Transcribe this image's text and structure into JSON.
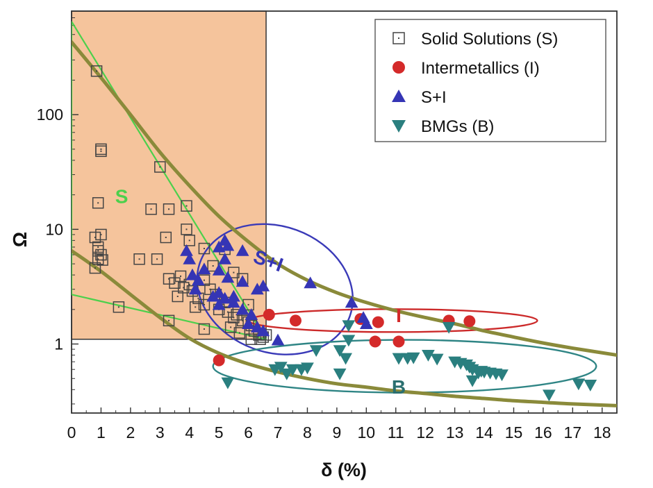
{
  "chart_data": {
    "type": "scatter",
    "xlabel": "δ (%)",
    "ylabel": "Ω",
    "xlim": [
      0,
      18.5
    ],
    "ylim": [
      0.25,
      800
    ],
    "yscale": "log",
    "xticks": [
      "0",
      "1",
      "2",
      "3",
      "4",
      "5",
      "6",
      "7",
      "8",
      "9",
      "10",
      "11",
      "12",
      "13",
      "14",
      "15",
      "16",
      "17",
      "18"
    ],
    "yticks": [
      {
        "value": 1,
        "label": "1"
      },
      {
        "value": 10,
        "label": "10"
      },
      {
        "value": 100,
        "label": "100"
      }
    ],
    "legend_position": "top-right",
    "colors": {
      "solid": "#444444",
      "inter": "#d42a2a",
      "si": "#3535b5",
      "bmg": "#2a7f7f",
      "region_fill": "#f5c49c",
      "curve": "#8a8a3a",
      "green": "#4cd04c",
      "ellipse_si": "#3a3ab8",
      "ellipse_i": "#cc2a2a",
      "ellipse_b": "#2f8585"
    },
    "region": {
      "x": [
        0,
        6.6
      ],
      "y": [
        1.1,
        800
      ]
    },
    "region_labels": [
      {
        "text": "S",
        "x": 1.7,
        "y": 17,
        "color": "#4cd04c"
      },
      {
        "text": "S+I",
        "x": 6.6,
        "y": 4.7,
        "color": "#3535b5"
      },
      {
        "text": "I",
        "x": 11.1,
        "y": 1.55,
        "color": "#d42a2a"
      },
      {
        "text": "B",
        "x": 11.1,
        "y": 0.37,
        "color": "#2a6f6f"
      }
    ],
    "series": [
      {
        "name": "Solid Solutions (S)",
        "marker": "square",
        "points": [
          [
            0.85,
            240
          ],
          [
            1.0,
            50
          ],
          [
            1.0,
            48
          ],
          [
            0.9,
            17
          ],
          [
            0.8,
            8.5
          ],
          [
            1.0,
            9
          ],
          [
            0.9,
            7
          ],
          [
            1.0,
            6
          ],
          [
            0.9,
            5.5
          ],
          [
            0.8,
            4.6
          ],
          [
            0.9,
            6.5
          ],
          [
            1.05,
            5.4
          ],
          [
            1.6,
            2.1
          ],
          [
            3.0,
            35
          ],
          [
            3.3,
            15
          ],
          [
            2.7,
            15
          ],
          [
            3.2,
            8.5
          ],
          [
            2.3,
            5.5
          ],
          [
            2.9,
            5.5
          ],
          [
            3.9,
            16
          ],
          [
            3.9,
            10
          ],
          [
            4.0,
            8
          ],
          [
            3.3,
            3.7
          ],
          [
            3.5,
            3.4
          ],
          [
            3.7,
            3.9
          ],
          [
            3.8,
            3.1
          ],
          [
            4.0,
            3.3
          ],
          [
            4.1,
            2.9
          ],
          [
            4.3,
            2.5
          ],
          [
            4.5,
            3.6
          ],
          [
            4.5,
            2.2
          ],
          [
            4.7,
            3.0
          ],
          [
            4.9,
            2.7
          ],
          [
            5.0,
            2.0
          ],
          [
            5.2,
            2.3
          ],
          [
            5.3,
            1.9
          ],
          [
            5.5,
            1.7
          ],
          [
            5.6,
            1.8
          ],
          [
            5.8,
            1.6
          ],
          [
            6.0,
            1.55
          ],
          [
            6.1,
            1.45
          ],
          [
            6.2,
            1.3
          ],
          [
            6.35,
            1.2
          ],
          [
            6.4,
            1.1
          ],
          [
            6.5,
            1.15
          ],
          [
            6.6,
            1.2
          ],
          [
            5.2,
            6.7
          ],
          [
            4.5,
            6.8
          ],
          [
            4.8,
            4.8
          ],
          [
            5.5,
            4.2
          ],
          [
            5.8,
            3.7
          ],
          [
            6.0,
            2.2
          ],
          [
            3.3,
            1.6
          ],
          [
            4.5,
            1.35
          ],
          [
            5.7,
            1.25
          ],
          [
            6.1,
            1.1
          ],
          [
            3.6,
            2.6
          ],
          [
            4.2,
            2.1
          ],
          [
            5.4,
            1.4
          ]
        ]
      },
      {
        "name": "Intermetallics (I)",
        "marker": "circle",
        "points": [
          [
            6.7,
            1.8
          ],
          [
            7.6,
            1.6
          ],
          [
            10.4,
            1.55
          ],
          [
            10.3,
            1.05
          ],
          [
            11.1,
            1.05
          ],
          [
            12.8,
            1.6
          ],
          [
            13.5,
            1.58
          ],
          [
            9.8,
            1.65
          ],
          [
            5.0,
            0.72
          ]
        ]
      },
      {
        "name": "S+I",
        "marker": "triangle-up",
        "points": [
          [
            3.9,
            6.5
          ],
          [
            4.0,
            5.5
          ],
          [
            4.1,
            4.0
          ],
          [
            4.5,
            4.5
          ],
          [
            4.3,
            3.6
          ],
          [
            5.0,
            7.0
          ],
          [
            5.2,
            8.0
          ],
          [
            5.3,
            7.2
          ],
          [
            5.8,
            6.5
          ],
          [
            5.2,
            5.5
          ],
          [
            5.0,
            4.4
          ],
          [
            5.3,
            3.8
          ],
          [
            5.8,
            3.5
          ],
          [
            6.3,
            3.0
          ],
          [
            6.5,
            3.2
          ],
          [
            5.0,
            2.8
          ],
          [
            5.2,
            2.5
          ],
          [
            5.5,
            2.6
          ],
          [
            5.8,
            2.0
          ],
          [
            6.1,
            1.8
          ],
          [
            5.5,
            2.3
          ],
          [
            5.0,
            2.2
          ],
          [
            4.8,
            2.6
          ],
          [
            4.2,
            3.0
          ],
          [
            6.0,
            1.5
          ],
          [
            6.3,
            1.4
          ],
          [
            6.5,
            1.3
          ],
          [
            7.0,
            1.08
          ],
          [
            8.1,
            3.4
          ],
          [
            9.5,
            2.3
          ],
          [
            9.9,
            1.7
          ],
          [
            10.0,
            1.5
          ]
        ]
      },
      {
        "name": "BMGs (B)",
        "marker": "triangle-down",
        "points": [
          [
            5.3,
            0.46
          ],
          [
            6.9,
            0.6
          ],
          [
            7.1,
            0.63
          ],
          [
            7.3,
            0.55
          ],
          [
            7.5,
            0.6
          ],
          [
            7.8,
            0.6
          ],
          [
            8.0,
            0.62
          ],
          [
            8.3,
            0.88
          ],
          [
            9.1,
            0.88
          ],
          [
            9.3,
            0.75
          ],
          [
            9.1,
            0.55
          ],
          [
            9.4,
            1.08
          ],
          [
            9.4,
            1.45
          ],
          [
            11.1,
            0.75
          ],
          [
            11.4,
            0.75
          ],
          [
            11.6,
            0.76
          ],
          [
            12.1,
            0.8
          ],
          [
            12.4,
            0.74
          ],
          [
            12.8,
            1.4
          ],
          [
            13.0,
            0.7
          ],
          [
            13.2,
            0.68
          ],
          [
            13.4,
            0.66
          ],
          [
            13.5,
            0.63
          ],
          [
            13.6,
            0.6
          ],
          [
            13.8,
            0.56
          ],
          [
            13.9,
            0.58
          ],
          [
            14.0,
            0.57
          ],
          [
            14.2,
            0.56
          ],
          [
            14.4,
            0.55
          ],
          [
            14.6,
            0.54
          ],
          [
            13.6,
            0.48
          ],
          [
            16.2,
            0.36
          ],
          [
            17.2,
            0.45
          ],
          [
            17.6,
            0.44
          ]
        ]
      }
    ],
    "curves": [
      {
        "name": "upper-boundary",
        "points": [
          [
            0,
            430
          ],
          [
            1,
            210
          ],
          [
            2,
            100
          ],
          [
            3,
            47
          ],
          [
            4,
            24
          ],
          [
            5,
            13
          ],
          [
            6,
            7.8
          ],
          [
            7,
            5.0
          ],
          [
            8,
            3.6
          ],
          [
            9,
            2.8
          ],
          [
            10,
            2.3
          ],
          [
            11,
            1.95
          ],
          [
            12,
            1.7
          ],
          [
            13,
            1.5
          ],
          [
            14,
            1.3
          ],
          [
            15,
            1.15
          ],
          [
            16,
            1.02
          ],
          [
            17,
            0.92
          ],
          [
            18.5,
            0.8
          ]
        ]
      },
      {
        "name": "lower-boundary",
        "points": [
          [
            0,
            6.5
          ],
          [
            1,
            4.3
          ],
          [
            2,
            2.7
          ],
          [
            3,
            1.7
          ],
          [
            4,
            1.12
          ],
          [
            5,
            0.83
          ],
          [
            6,
            0.67
          ],
          [
            7,
            0.57
          ],
          [
            8,
            0.5
          ],
          [
            9,
            0.45
          ],
          [
            10,
            0.42
          ],
          [
            11,
            0.39
          ],
          [
            12,
            0.37
          ],
          [
            13,
            0.35
          ],
          [
            14,
            0.335
          ],
          [
            15,
            0.32
          ],
          [
            16,
            0.31
          ],
          [
            17,
            0.3
          ],
          [
            18.5,
            0.29
          ]
        ]
      }
    ],
    "green_lines": [
      {
        "points": [
          [
            0,
            650
          ],
          [
            6.6,
            1.1
          ]
        ]
      },
      {
        "points": [
          [
            0,
            2.7
          ],
          [
            6.6,
            1.1
          ]
        ]
      },
      {
        "points": [
          [
            0,
            2.7
          ],
          [
            0,
            650
          ]
        ]
      }
    ],
    "ellipses": [
      {
        "name": "S+I",
        "cx": 6.9,
        "cy": 3.0,
        "rx": 2.7,
        "ry_log": 0.55,
        "angle_deg": 20,
        "color": "#3a3ab8"
      },
      {
        "name": "I",
        "cx": 10.9,
        "cy": 1.6,
        "rx": 4.9,
        "ry_log": 0.1,
        "angle_deg": 0,
        "color": "#cc2a2a"
      },
      {
        "name": "B",
        "cx": 11.3,
        "cy": 0.64,
        "rx": 6.5,
        "ry_log": 0.23,
        "angle_deg": 0,
        "color": "#2f8585"
      }
    ]
  }
}
